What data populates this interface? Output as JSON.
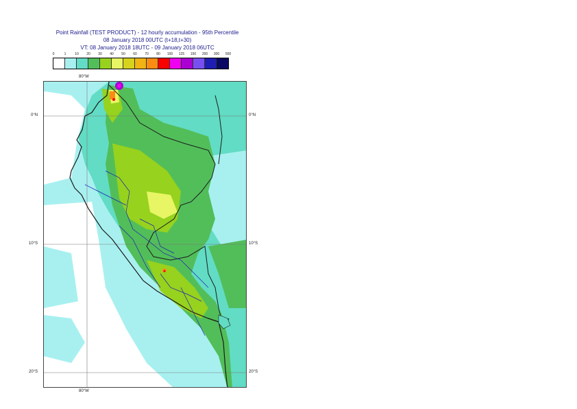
{
  "title": {
    "line1": "Point Rainfall (TEST PRODUCT) - 12 hourly accumulation - 95th Percentile",
    "line2": "08 January 2018 00UTC (t+18,t+30)",
    "line3": "VT: 08 January 2018 18UTC - 09 January 2018 06UTC"
  },
  "legend": {
    "labels": [
      "0",
      "1",
      "10",
      "20",
      "30",
      "40",
      "50",
      "60",
      "70",
      "80",
      "100",
      "125",
      "150",
      "200",
      "300",
      "500"
    ],
    "colors": [
      "#ffffff",
      "#a8f0f0",
      "#62dcc4",
      "#52be5a",
      "#96d21e",
      "#e8f564",
      "#d6d21e",
      "#f0b414",
      "#fa8c14",
      "#fa0000",
      "#f000f0",
      "#aa00d2",
      "#7850f0",
      "#1e1eb4",
      "#0a0a64"
    ]
  },
  "axes": {
    "lon_top": "80°W",
    "lon_bottom": "80°W",
    "lat_left": [
      "0°N",
      "10°S",
      "20°S"
    ],
    "lat_right": [
      "0°N",
      "10°S",
      "20°S"
    ]
  },
  "colors": {
    "ocean": "#a8f0f0",
    "land_light": "#62dcc4",
    "land_green": "#52be5a",
    "land_yellowgreen": "#96d21e",
    "land_yellow": "#e8f564",
    "coast": "#1a1a1a",
    "admin": "#1e1eb4"
  }
}
